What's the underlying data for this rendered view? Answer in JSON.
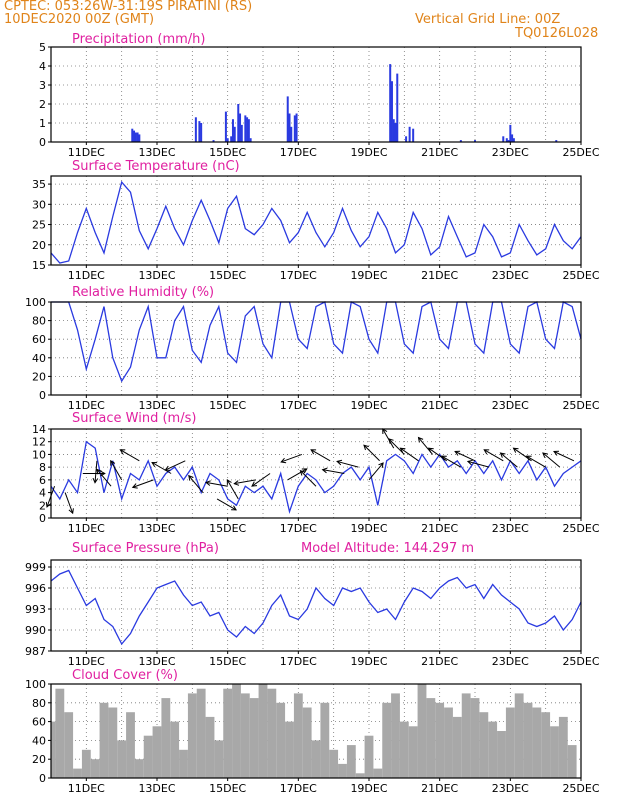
{
  "header": {
    "station": "CPTEC:   053:26W-31:19S   PIRATINI (RS)",
    "date": "10DEC2020 00Z (GMT)",
    "grid_note": "Vertical Grid Line: 00Z",
    "code": "TQ0126L028"
  },
  "colors": {
    "header": "#e0841a",
    "panel_title": "#e020a0",
    "series": "#2a3ae0",
    "cloud": "#a8a8a8",
    "grid": "#777777",
    "frame": "#000000",
    "wind_arrow": "#000000"
  },
  "x_axis": {
    "tick_labels": [
      "11DEC",
      "13DEC",
      "15DEC",
      "17DEC",
      "19DEC",
      "21DEC",
      "23DEC",
      "25DEC"
    ],
    "tick_days": [
      11,
      13,
      15,
      17,
      19,
      21,
      23,
      25
    ],
    "range_days": [
      10,
      25
    ]
  },
  "panels": {
    "precip": {
      "title": "Precipitation (mm/h)"
    },
    "temp": {
      "title": "Surface Temperature (nC)"
    },
    "rh": {
      "title": "Relative Humidity (%)"
    },
    "wind": {
      "title": "Surface Wind (m/s)"
    },
    "press": {
      "title": "Surface Pressure (hPa)",
      "extra": "Model Altitude: 144.297 m"
    },
    "cloud": {
      "title": "Cloud Cover (%)"
    }
  },
  "chart_data": [
    {
      "id": "precip",
      "type": "bar",
      "title": "Precipitation (mm/h)",
      "ylabel": "mm/h",
      "ylim": [
        0,
        5
      ],
      "yticks": [
        0,
        1,
        2,
        3,
        4,
        5
      ],
      "grid": true,
      "x": [
        12.3,
        12.35,
        12.4,
        12.45,
        12.5,
        14.1,
        14.2,
        14.25,
        14.6,
        14.95,
        15.0,
        15.1,
        15.15,
        15.2,
        15.3,
        15.35,
        15.4,
        15.5,
        15.55,
        15.6,
        15.65,
        16.7,
        16.75,
        16.8,
        16.9,
        16.95,
        19.6,
        19.65,
        19.7,
        19.75,
        19.8,
        20.05,
        20.15,
        20.25,
        21.6,
        22.0,
        22.8,
        22.9,
        22.95,
        23.0,
        23.05,
        23.1,
        24.3
      ],
      "values": [
        0.7,
        0.6,
        0.5,
        0.5,
        0.4,
        1.3,
        1.1,
        1.0,
        0.1,
        1.6,
        0.2,
        0.3,
        1.2,
        0.8,
        2.0,
        1.5,
        0.9,
        1.4,
        1.3,
        1.2,
        0.2,
        2.4,
        1.5,
        0.8,
        1.4,
        1.5,
        4.1,
        3.2,
        1.2,
        1.0,
        3.6,
        0.3,
        0.8,
        0.7,
        0.1,
        0.1,
        0.3,
        0.2,
        0.1,
        0.9,
        0.4,
        0.2,
        0.1
      ]
    },
    {
      "id": "temp",
      "type": "line",
      "title": "Surface Temperature (nC)",
      "ylabel": "°C",
      "ylim": [
        15,
        37
      ],
      "yticks": [
        15,
        20,
        25,
        30,
        35
      ],
      "grid": true,
      "x": [
        10.0,
        10.25,
        10.5,
        10.75,
        11.0,
        11.25,
        11.5,
        11.75,
        12.0,
        12.25,
        12.5,
        12.75,
        13.0,
        13.25,
        13.5,
        13.75,
        14.0,
        14.25,
        14.5,
        14.75,
        15.0,
        15.25,
        15.5,
        15.75,
        16.0,
        16.25,
        16.5,
        16.75,
        17.0,
        17.25,
        17.5,
        17.75,
        18.0,
        18.25,
        18.5,
        18.75,
        19.0,
        19.25,
        19.5,
        19.75,
        20.0,
        20.25,
        20.5,
        20.75,
        21.0,
        21.25,
        21.5,
        21.75,
        22.0,
        22.25,
        22.5,
        22.75,
        23.0,
        23.25,
        23.5,
        23.75,
        24.0,
        24.25,
        24.5,
        24.75,
        25.0
      ],
      "y": [
        18,
        15.5,
        16,
        23,
        29,
        23,
        18,
        27,
        35.5,
        33,
        23.5,
        19,
        24,
        29.5,
        24,
        20,
        26,
        31,
        26,
        20.5,
        29,
        32,
        24,
        22.5,
        25,
        29,
        26,
        20.5,
        23,
        28,
        23,
        19.5,
        23,
        29,
        23.5,
        19.5,
        22,
        28,
        24,
        18,
        20,
        28,
        24,
        17.5,
        19.5,
        27,
        22,
        17,
        18,
        25,
        22,
        17,
        18,
        25,
        21,
        17.5,
        19,
        25,
        21,
        19,
        22
      ]
    },
    {
      "id": "rh",
      "type": "line",
      "title": "Relative Humidity (%)",
      "ylabel": "%",
      "ylim": [
        0,
        100
      ],
      "yticks": [
        0,
        20,
        40,
        60,
        80,
        100
      ],
      "grid": true,
      "x": [
        10.0,
        10.25,
        10.5,
        10.75,
        11.0,
        11.25,
        11.5,
        11.75,
        12.0,
        12.25,
        12.5,
        12.75,
        13.0,
        13.25,
        13.5,
        13.75,
        14.0,
        14.25,
        14.5,
        14.75,
        15.0,
        15.25,
        15.5,
        15.75,
        16.0,
        16.25,
        16.5,
        16.75,
        17.0,
        17.25,
        17.5,
        17.75,
        18.0,
        18.25,
        18.5,
        18.75,
        19.0,
        19.25,
        19.5,
        19.75,
        20.0,
        20.25,
        20.5,
        20.75,
        21.0,
        21.25,
        21.5,
        21.75,
        22.0,
        22.25,
        22.5,
        22.75,
        23.0,
        23.25,
        23.5,
        23.75,
        24.0,
        24.25,
        24.5,
        24.75,
        25.0
      ],
      "y": [
        100,
        100,
        100,
        70,
        28,
        60,
        95,
        40,
        15,
        30,
        70,
        95,
        40,
        40,
        80,
        95,
        48,
        35,
        75,
        95,
        45,
        35,
        85,
        95,
        55,
        40,
        100,
        100,
        60,
        50,
        95,
        100,
        55,
        45,
        100,
        95,
        60,
        45,
        100,
        100,
        55,
        45,
        95,
        100,
        60,
        50,
        100,
        100,
        55,
        45,
        100,
        100,
        55,
        45,
        95,
        100,
        60,
        50,
        100,
        95,
        60
      ]
    },
    {
      "id": "wind",
      "type": "line",
      "title": "Surface Wind (m/s)",
      "ylabel": "m/s",
      "ylim": [
        0,
        14
      ],
      "yticks": [
        0,
        2,
        4,
        6,
        8,
        10,
        12,
        14
      ],
      "grid": true,
      "x": [
        10.0,
        10.25,
        10.5,
        10.75,
        11.0,
        11.25,
        11.5,
        11.75,
        12.0,
        12.25,
        12.5,
        12.75,
        13.0,
        13.25,
        13.5,
        13.75,
        14.0,
        14.25,
        14.5,
        14.75,
        15.0,
        15.25,
        15.5,
        15.75,
        16.0,
        16.25,
        16.5,
        16.75,
        17.0,
        17.25,
        17.5,
        17.75,
        18.0,
        18.25,
        18.5,
        18.75,
        19.0,
        19.25,
        19.5,
        19.75,
        20.0,
        20.25,
        20.5,
        20.75,
        21.0,
        21.25,
        21.5,
        21.75,
        22.0,
        22.25,
        22.5,
        22.75,
        23.0,
        23.25,
        23.5,
        23.75,
        24.0,
        24.25,
        24.5,
        24.75,
        25.0
      ],
      "y": [
        5,
        3,
        6,
        4,
        12,
        11,
        4,
        9,
        3,
        7,
        6,
        9,
        5,
        7,
        8,
        6,
        8,
        4,
        7,
        6,
        3,
        2,
        5,
        4,
        5,
        3,
        7,
        1,
        5,
        7,
        6,
        4,
        5,
        7,
        8,
        6,
        8,
        2,
        9,
        10,
        9,
        7,
        10,
        8,
        10,
        8,
        9,
        7,
        9,
        7,
        9,
        6,
        9,
        7,
        9,
        6,
        8,
        5,
        7,
        8,
        9
      ],
      "arrows": [
        {
          "x": 10.1,
          "dir_deg": 200,
          "speed": 5
        },
        {
          "x": 10.4,
          "dir_deg": 160,
          "speed": 4
        },
        {
          "x": 10.9,
          "dir_deg": 90,
          "speed": 7
        },
        {
          "x": 11.3,
          "dir_deg": 185,
          "speed": 9
        },
        {
          "x": 11.7,
          "dir_deg": 320,
          "speed": 5
        },
        {
          "x": 12.0,
          "dir_deg": 330,
          "speed": 6
        },
        {
          "x": 12.5,
          "dir_deg": 300,
          "speed": 9
        },
        {
          "x": 12.9,
          "dir_deg": 250,
          "speed": 6
        },
        {
          "x": 13.4,
          "dir_deg": 300,
          "speed": 7
        },
        {
          "x": 13.8,
          "dir_deg": 245,
          "speed": 9
        },
        {
          "x": 14.3,
          "dir_deg": 320,
          "speed": 4
        },
        {
          "x": 14.7,
          "dir_deg": 120,
          "speed": 3
        },
        {
          "x": 15.0,
          "dir_deg": 280,
          "speed": 5
        },
        {
          "x": 15.3,
          "dir_deg": 330,
          "speed": 3
        },
        {
          "x": 15.8,
          "dir_deg": 260,
          "speed": 6
        },
        {
          "x": 16.2,
          "dir_deg": 235,
          "speed": 7
        },
        {
          "x": 16.7,
          "dir_deg": 60,
          "speed": 6
        },
        {
          "x": 17.1,
          "dir_deg": 250,
          "speed": 10
        },
        {
          "x": 17.5,
          "dir_deg": 315,
          "speed": 5
        },
        {
          "x": 17.9,
          "dir_deg": 300,
          "speed": 9
        },
        {
          "x": 18.3,
          "dir_deg": 280,
          "speed": 7
        },
        {
          "x": 18.7,
          "dir_deg": 285,
          "speed": 8
        },
        {
          "x": 19.0,
          "dir_deg": 40,
          "speed": 6
        },
        {
          "x": 19.3,
          "dir_deg": 315,
          "speed": 9
        },
        {
          "x": 19.7,
          "dir_deg": 330,
          "speed": 11
        },
        {
          "x": 20.0,
          "dir_deg": 315,
          "speed": 10
        },
        {
          "x": 20.4,
          "dir_deg": 305,
          "speed": 9
        },
        {
          "x": 20.8,
          "dir_deg": 320,
          "speed": 10
        },
        {
          "x": 21.2,
          "dir_deg": 305,
          "speed": 9
        },
        {
          "x": 21.6,
          "dir_deg": 300,
          "speed": 8
        },
        {
          "x": 22.0,
          "dir_deg": 295,
          "speed": 9
        },
        {
          "x": 22.4,
          "dir_deg": 285,
          "speed": 8
        },
        {
          "x": 22.8,
          "dir_deg": 300,
          "speed": 9
        },
        {
          "x": 23.2,
          "dir_deg": 310,
          "speed": 8
        },
        {
          "x": 23.6,
          "dir_deg": 305,
          "speed": 9
        },
        {
          "x": 24.0,
          "dir_deg": 300,
          "speed": 8
        },
        {
          "x": 24.4,
          "dir_deg": 310,
          "speed": 8
        },
        {
          "x": 24.8,
          "dir_deg": 295,
          "speed": 9
        }
      ]
    },
    {
      "id": "press",
      "type": "line",
      "title": "Surface Pressure (hPa)",
      "ylabel": "hPa",
      "ylim": [
        987,
        1000
      ],
      "yticks": [
        987,
        990,
        993,
        996,
        999
      ],
      "grid": true,
      "x": [
        10.0,
        10.25,
        10.5,
        10.75,
        11.0,
        11.25,
        11.5,
        11.75,
        12.0,
        12.25,
        12.5,
        12.75,
        13.0,
        13.25,
        13.5,
        13.75,
        14.0,
        14.25,
        14.5,
        14.75,
        15.0,
        15.25,
        15.5,
        15.75,
        16.0,
        16.25,
        16.5,
        16.75,
        17.0,
        17.25,
        17.5,
        17.75,
        18.0,
        18.25,
        18.5,
        18.75,
        19.0,
        19.25,
        19.5,
        19.75,
        20.0,
        20.25,
        20.5,
        20.75,
        21.0,
        21.25,
        21.5,
        21.75,
        22.0,
        22.25,
        22.5,
        22.75,
        23.0,
        23.25,
        23.5,
        23.75,
        24.0,
        24.25,
        24.5,
        24.75,
        25.0
      ],
      "y": [
        997,
        998,
        998.5,
        996,
        993.5,
        994.5,
        991.5,
        990.5,
        988,
        989.5,
        992,
        994,
        996,
        996.5,
        997,
        995,
        993.5,
        994,
        992,
        992.5,
        990,
        989,
        990.5,
        989.5,
        991,
        993.5,
        995,
        992,
        991.5,
        993,
        996,
        994.5,
        993.5,
        996,
        995.5,
        996,
        994,
        992.5,
        993,
        991.5,
        994,
        996,
        995.5,
        994.5,
        996,
        997,
        997.5,
        996,
        996.5,
        994.5,
        996.5,
        995,
        994,
        993,
        991,
        990.5,
        991,
        992,
        990,
        991.5,
        994
      ]
    },
    {
      "id": "cloud",
      "type": "bar",
      "title": "Cloud Cover (%)",
      "ylabel": "%",
      "ylim": [
        0,
        100
      ],
      "yticks": [
        0,
        20,
        40,
        60,
        80,
        100
      ],
      "grid": true,
      "x": [
        10.0,
        10.25,
        10.5,
        10.75,
        11.0,
        11.25,
        11.5,
        11.75,
        12.0,
        12.25,
        12.5,
        12.75,
        13.0,
        13.25,
        13.5,
        13.75,
        14.0,
        14.25,
        14.5,
        14.75,
        15.0,
        15.25,
        15.5,
        15.75,
        16.0,
        16.25,
        16.5,
        16.75,
        17.0,
        17.25,
        17.5,
        17.75,
        18.0,
        18.25,
        18.5,
        18.75,
        19.0,
        19.25,
        19.5,
        19.75,
        20.0,
        20.25,
        20.5,
        20.75,
        21.0,
        21.25,
        21.5,
        21.75,
        22.0,
        22.25,
        22.5,
        22.75,
        23.0,
        23.25,
        23.5,
        23.75,
        24.0,
        24.25,
        24.5,
        24.75,
        25.0
      ],
      "values": [
        60,
        95,
        70,
        10,
        30,
        20,
        80,
        75,
        40,
        70,
        20,
        45,
        55,
        85,
        60,
        30,
        90,
        95,
        65,
        40,
        95,
        100,
        90,
        85,
        100,
        95,
        80,
        60,
        90,
        75,
        40,
        80,
        30,
        15,
        35,
        5,
        45,
        10,
        80,
        90,
        60,
        55,
        100,
        85,
        80,
        75,
        65,
        90,
        85,
        70,
        60,
        50,
        75,
        90,
        80,
        75,
        70,
        55,
        65,
        35,
        0
      ]
    }
  ]
}
